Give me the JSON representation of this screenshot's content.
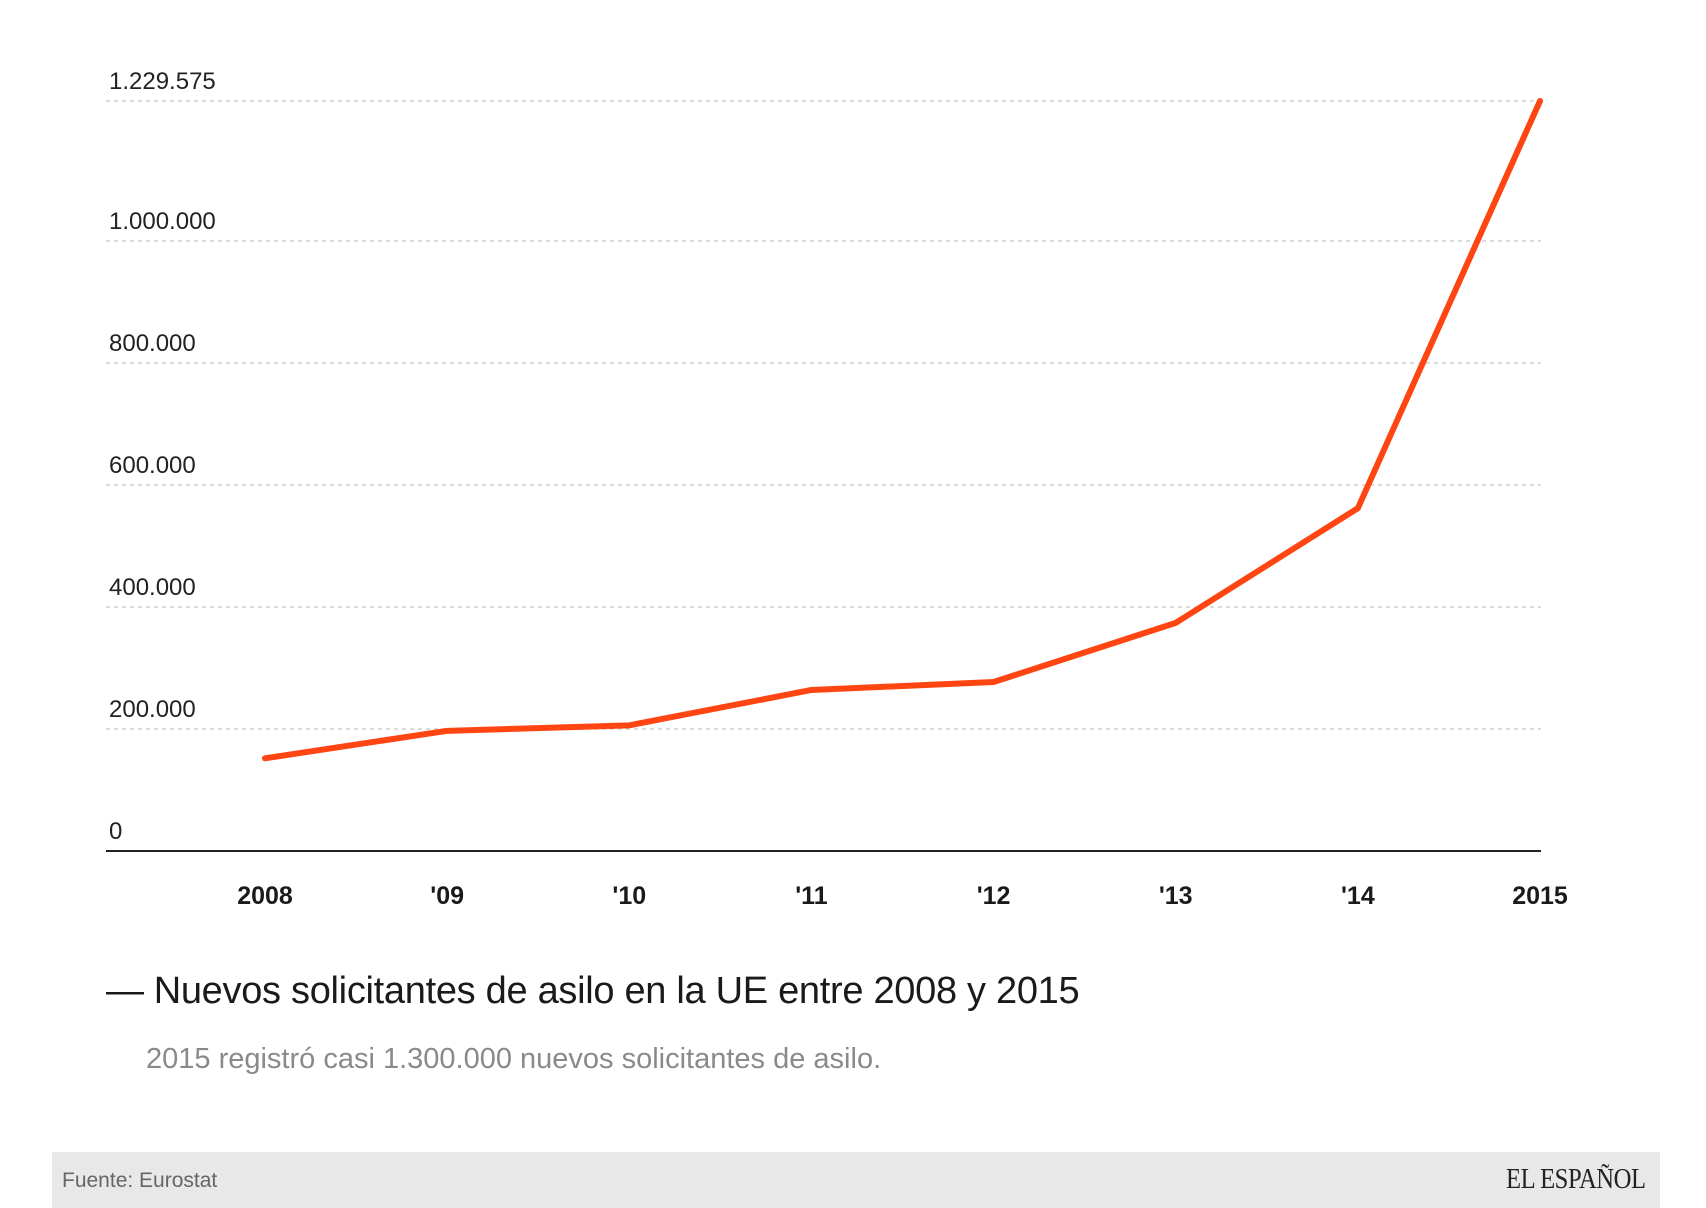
{
  "chart_data": {
    "type": "line",
    "categories": [
      "2008",
      "'09",
      "'10",
      "'11",
      "'12",
      "'13",
      "'14",
      "2015"
    ],
    "series": [
      {
        "values": [
          152000,
          197000,
          206000,
          264000,
          277000,
          374000,
          562000,
          1229575
        ],
        "color": "#ff4512"
      }
    ],
    "y_ticks": [
      {
        "value": 0,
        "label": "0"
      },
      {
        "value": 200000,
        "label": "200.000"
      },
      {
        "value": 400000,
        "label": "400.000"
      },
      {
        "value": 600000,
        "label": "600.000"
      },
      {
        "value": 800000,
        "label": "800.000"
      },
      {
        "value": 1000000,
        "label": "1.000.000"
      },
      {
        "value": 1229575,
        "label": "1.229.575"
      }
    ],
    "ylim": [
      0,
      1229575
    ],
    "grid": true,
    "title": "Nuevos solicitantes de asilo en la UE entre 2008 y 2015",
    "subtitle": "2015 registró casi 1.300.000 nuevos solicitantes de asilo."
  },
  "header": {
    "dash": "—",
    "title": "Nuevos solicitantes de asilo en la UE entre 2008 y 2015",
    "subtitle": "2015 registró casi 1.300.000 nuevos solicitantes de asilo."
  },
  "footer": {
    "source": "Fuente: Eurostat",
    "logo": "EL ESPAÑOL"
  }
}
